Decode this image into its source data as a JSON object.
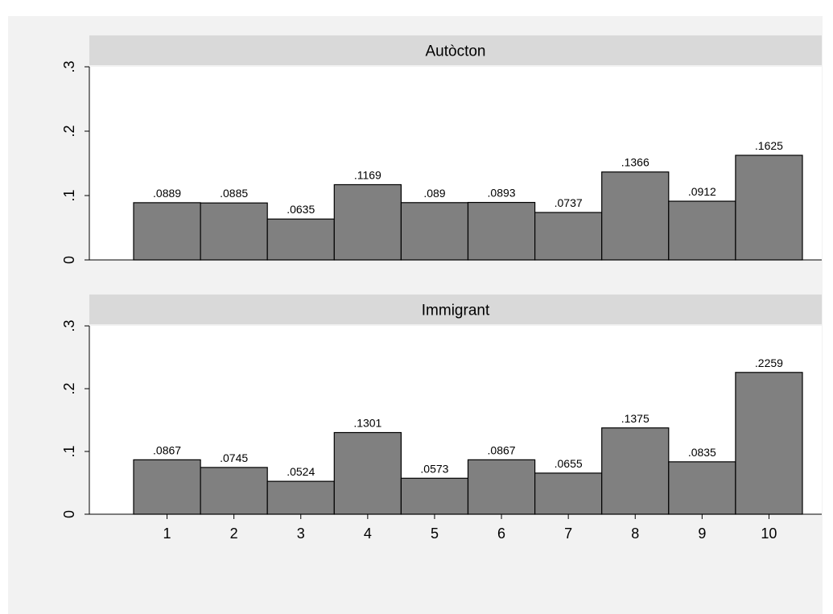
{
  "page_caption": "",
  "chart_data": {
    "type": "bar",
    "categories": [
      "1",
      "2",
      "3",
      "4",
      "5",
      "6",
      "7",
      "8",
      "9",
      "10"
    ],
    "ylim": [
      0,
      0.3
    ],
    "yticks": [
      "0",
      ".1",
      ".2",
      ".3"
    ],
    "grid": false,
    "colors": {
      "bar_fill": "#808080",
      "bar_stroke": "#000000",
      "panel_header": "#d9d9d9",
      "outer_background": "#f2f2f2",
      "plot_background": "#ffffff"
    },
    "panels": [
      {
        "label": "Autòcton",
        "values": [
          0.0889,
          0.0885,
          0.0635,
          0.1169,
          0.089,
          0.0893,
          0.0737,
          0.1366,
          0.0912,
          0.1625
        ],
        "value_labels": [
          ".0889",
          ".0885",
          ".0635",
          ".1169",
          ".089",
          ".0893",
          ".0737",
          ".1366",
          ".0912",
          ".1625"
        ]
      },
      {
        "label": "Immigrant",
        "values": [
          0.0867,
          0.0745,
          0.0524,
          0.1301,
          0.0573,
          0.0867,
          0.0655,
          0.1375,
          0.0835,
          0.2259
        ],
        "value_labels": [
          ".0867",
          ".0745",
          ".0524",
          ".1301",
          ".0573",
          ".0867",
          ".0655",
          ".1375",
          ".0835",
          ".2259"
        ]
      }
    ]
  }
}
